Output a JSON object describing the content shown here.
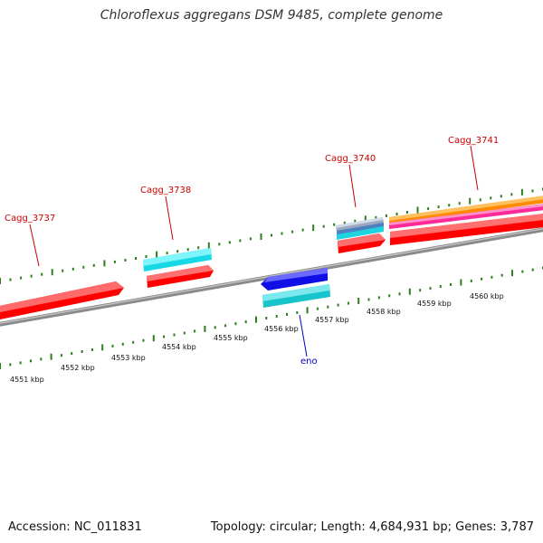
{
  "title": "Chloroflexus aggregans DSM 9485, complete genome",
  "footer": {
    "accession": "Accession: NC_011831",
    "summary": "Topology: circular; Length: 4,684,931 bp; Genes: 3,787"
  },
  "colors": {
    "backbone": "#8f8f8f",
    "tick": "#2e7d1e",
    "gene_label": "#cc0000",
    "feature_label": "#0000cc",
    "scale_text": "#111111"
  },
  "scale_labels": [
    "4551 kbp",
    "4552 kbp",
    "4553 kbp",
    "4554 kbp",
    "4555 kbp",
    "4556 kbp",
    "4557 kbp",
    "4558 kbp",
    "4559 kbp",
    "4560 kbp"
  ],
  "gene_labels": [
    {
      "text": "Cagg_3737",
      "color": "red"
    },
    {
      "text": "Cagg_3738",
      "color": "red"
    },
    {
      "text": "Cagg_3740",
      "color": "red"
    },
    {
      "text": "Cagg_3741",
      "color": "red"
    },
    {
      "text": "eno",
      "color": "blue"
    }
  ],
  "features": [
    {
      "name": "Cagg_3737",
      "track": "forward",
      "color": "#ff0000"
    },
    {
      "name": "Cagg_3738",
      "track": "forward",
      "color": "#ff0000"
    },
    {
      "name": "Cagg_3738-cyan",
      "track": "forward-outer",
      "color": "#22e4ee"
    },
    {
      "name": "Cagg_3740",
      "track": "forward",
      "color": "#ff0000"
    },
    {
      "name": "Cagg_3741",
      "track": "forward",
      "color": "#ff0000"
    },
    {
      "name": "eno",
      "track": "reverse",
      "color": "#1010ee"
    },
    {
      "name": "eno-cyan",
      "track": "reverse-inner",
      "color": "#22c8cc"
    }
  ]
}
